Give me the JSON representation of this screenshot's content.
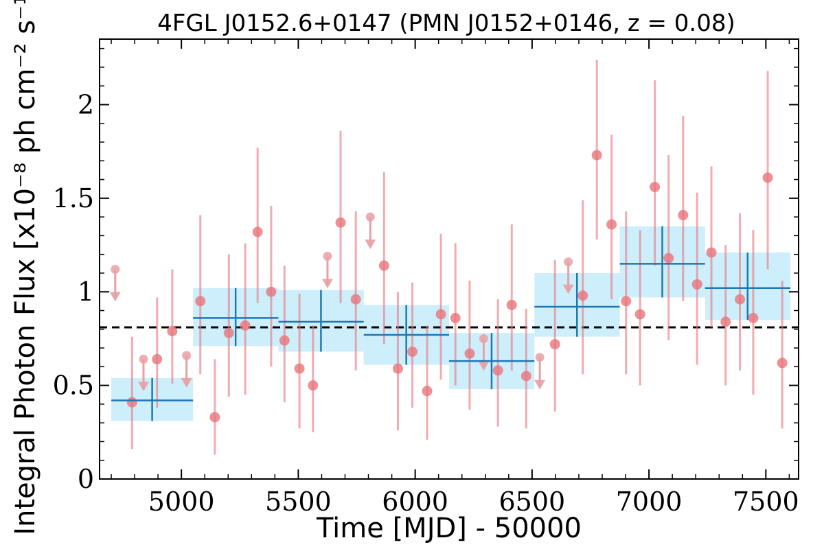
{
  "chart_data": {
    "type": "scatter",
    "title": "4FGL J0152.6+0147 (PMN J0152+0146, z = 0.08)",
    "xlabel": "Time [MJD] - 50000",
    "ylabel": "Integral Photon Flux [x10⁻⁸ ph cm⁻² s⁻¹]",
    "xlim": [
      4650,
      7640
    ],
    "ylim": [
      0,
      2.35
    ],
    "x_ticks": [
      5000,
      5500,
      6000,
      6500,
      7000,
      7500
    ],
    "x_tick_labels": [
      "5000",
      "5500",
      "6000",
      "6500",
      "7000",
      "7500"
    ],
    "y_ticks": [
      0,
      0.5,
      1,
      1.5,
      2
    ],
    "y_tick_labels": [
      "0",
      "0.5",
      "1",
      "1.5",
      "2"
    ],
    "reference_line": {
      "y": 0.81,
      "style": "dashed",
      "color": "#000000"
    },
    "colors": {
      "points": "#e8747c",
      "bins": "#1f77b4",
      "bin_band": "#cdeffc",
      "upper_limits": "#e8a0a4"
    },
    "series": [
      {
        "kind": "binned",
        "points": [
          {
            "x_start": 4700,
            "x_end": 5050,
            "x_center": 4875,
            "y": 0.42,
            "y_band": [
              0.31,
              0.54
            ],
            "y_err": [
              0.31,
              0.54
            ]
          },
          {
            "x_start": 5050,
            "x_end": 5415,
            "x_center": 5232,
            "y": 0.86,
            "y_band": [
              0.71,
              1.02
            ],
            "y_err": [
              0.71,
              1.02
            ]
          },
          {
            "x_start": 5415,
            "x_end": 5780,
            "x_center": 5597,
            "y": 0.84,
            "y_band": [
              0.68,
              1.01
            ],
            "y_err": [
              0.68,
              1.01
            ]
          },
          {
            "x_start": 5780,
            "x_end": 6145,
            "x_center": 5962,
            "y": 0.77,
            "y_band": [
              0.61,
              0.93
            ],
            "y_err": [
              0.61,
              0.93
            ]
          },
          {
            "x_start": 6145,
            "x_end": 6510,
            "x_center": 6327,
            "y": 0.63,
            "y_band": [
              0.48,
              0.78
            ],
            "y_err": [
              0.48,
              0.78
            ]
          },
          {
            "x_start": 6510,
            "x_end": 6875,
            "x_center": 6692,
            "y": 0.92,
            "y_band": [
              0.76,
              1.1
            ],
            "y_err": [
              0.76,
              1.1
            ]
          },
          {
            "x_start": 6875,
            "x_end": 7240,
            "x_center": 7057,
            "y": 1.15,
            "y_band": [
              0.97,
              1.35
            ],
            "y_err": [
              0.97,
              1.35
            ]
          },
          {
            "x_start": 7240,
            "x_end": 7605,
            "x_center": 7422,
            "y": 1.02,
            "y_band": [
              0.85,
              1.21
            ],
            "y_err": [
              0.85,
              1.21
            ]
          }
        ]
      },
      {
        "kind": "measurements",
        "points": [
          {
            "x": 4789,
            "y": 0.41,
            "y_err": [
              0.16,
              0.76
            ]
          },
          {
            "x": 4896,
            "y": 0.64,
            "y_err": [
              0.38,
              0.97
            ]
          },
          {
            "x": 4961,
            "y": 0.79,
            "y_err": [
              0.51,
              1.12
            ]
          },
          {
            "x": 5081,
            "y": 0.95,
            "y_err": [
              0.56,
              1.41
            ]
          },
          {
            "x": 5143,
            "y": 0.33,
            "y_err": [
              0.13,
              0.64
            ]
          },
          {
            "x": 5203,
            "y": 0.78,
            "y_err": [
              0.44,
              1.2
            ]
          },
          {
            "x": 5273,
            "y": 0.82,
            "y_err": [
              0.45,
              1.26
            ]
          },
          {
            "x": 5326,
            "y": 1.32,
            "y_err": [
              0.94,
              1.77
            ]
          },
          {
            "x": 5384,
            "y": 1.0,
            "y_err": [
              0.6,
              1.46
            ]
          },
          {
            "x": 5441,
            "y": 0.74,
            "y_err": [
              0.41,
              1.14
            ]
          },
          {
            "x": 5505,
            "y": 0.59,
            "y_err": [
              0.27,
              0.99
            ]
          },
          {
            "x": 5563,
            "y": 0.5,
            "y_err": [
              0.25,
              0.82
            ]
          },
          {
            "x": 5681,
            "y": 1.37,
            "y_err": [
              0.94,
              1.86
            ]
          },
          {
            "x": 5746,
            "y": 0.96,
            "y_err": [
              0.58,
              1.43
            ]
          },
          {
            "x": 5867,
            "y": 1.14,
            "y_err": [
              0.72,
              1.64
            ]
          },
          {
            "x": 5926,
            "y": 0.59,
            "y_err": [
              0.26,
              1.0
            ]
          },
          {
            "x": 5988,
            "y": 0.68,
            "y_err": [
              0.38,
              1.05
            ]
          },
          {
            "x": 6051,
            "y": 0.47,
            "y_err": [
              0.21,
              0.82
            ]
          },
          {
            "x": 6110,
            "y": 0.88,
            "y_err": [
              0.53,
              1.31
            ]
          },
          {
            "x": 6172,
            "y": 0.86,
            "y_err": [
              0.5,
              1.26
            ]
          },
          {
            "x": 6233,
            "y": 0.67,
            "y_err": [
              0.37,
              1.06
            ]
          },
          {
            "x": 6354,
            "y": 0.58,
            "y_err": [
              0.28,
              0.96
            ]
          },
          {
            "x": 6413,
            "y": 0.93,
            "y_err": [
              0.58,
              1.36
            ]
          },
          {
            "x": 6475,
            "y": 0.55,
            "y_err": [
              0.27,
              0.91
            ]
          },
          {
            "x": 6598,
            "y": 0.72,
            "y_err": [
              0.36,
              1.17
            ]
          },
          {
            "x": 6717,
            "y": 0.98,
            "y_err": [
              0.56,
              1.49
            ]
          },
          {
            "x": 6777,
            "y": 1.73,
            "y_err": [
              1.28,
              2.24
            ]
          },
          {
            "x": 6840,
            "y": 1.36,
            "y_err": [
              0.96,
              1.84
            ]
          },
          {
            "x": 6902,
            "y": 0.95,
            "y_err": [
              0.56,
              1.43
            ]
          },
          {
            "x": 6962,
            "y": 0.88,
            "y_err": [
              0.5,
              1.33
            ]
          },
          {
            "x": 7025,
            "y": 1.56,
            "y_err": [
              1.14,
              2.13
            ]
          },
          {
            "x": 7084,
            "y": 1.18,
            "y_err": [
              0.74,
              1.73
            ]
          },
          {
            "x": 7146,
            "y": 1.41,
            "y_err": [
              0.95,
              1.94
            ]
          },
          {
            "x": 7206,
            "y": 1.04,
            "y_err": [
              0.61,
              1.53
            ]
          },
          {
            "x": 7267,
            "y": 1.21,
            "y_err": [
              0.81,
              1.67
            ]
          },
          {
            "x": 7328,
            "y": 0.84,
            "y_err": [
              0.5,
              1.25
            ]
          },
          {
            "x": 7389,
            "y": 0.96,
            "y_err": [
              0.58,
              1.42
            ]
          },
          {
            "x": 7446,
            "y": 0.86,
            "y_err": [
              0.45,
              1.33
            ]
          },
          {
            "x": 7508,
            "y": 1.61,
            "y_err": [
              1.12,
              2.18
            ]
          },
          {
            "x": 7570,
            "y": 0.62,
            "y_err": [
              0.27,
              1.06
            ]
          }
        ]
      },
      {
        "kind": "upper_limits",
        "points": [
          {
            "x": 4717,
            "y": 1.12
          },
          {
            "x": 4838,
            "y": 0.64
          },
          {
            "x": 5022,
            "y": 0.66
          },
          {
            "x": 5625,
            "y": 1.19
          },
          {
            "x": 5808,
            "y": 1.4
          },
          {
            "x": 6293,
            "y": 0.75
          },
          {
            "x": 6533,
            "y": 0.65
          },
          {
            "x": 6655,
            "y": 1.16
          }
        ]
      }
    ]
  }
}
